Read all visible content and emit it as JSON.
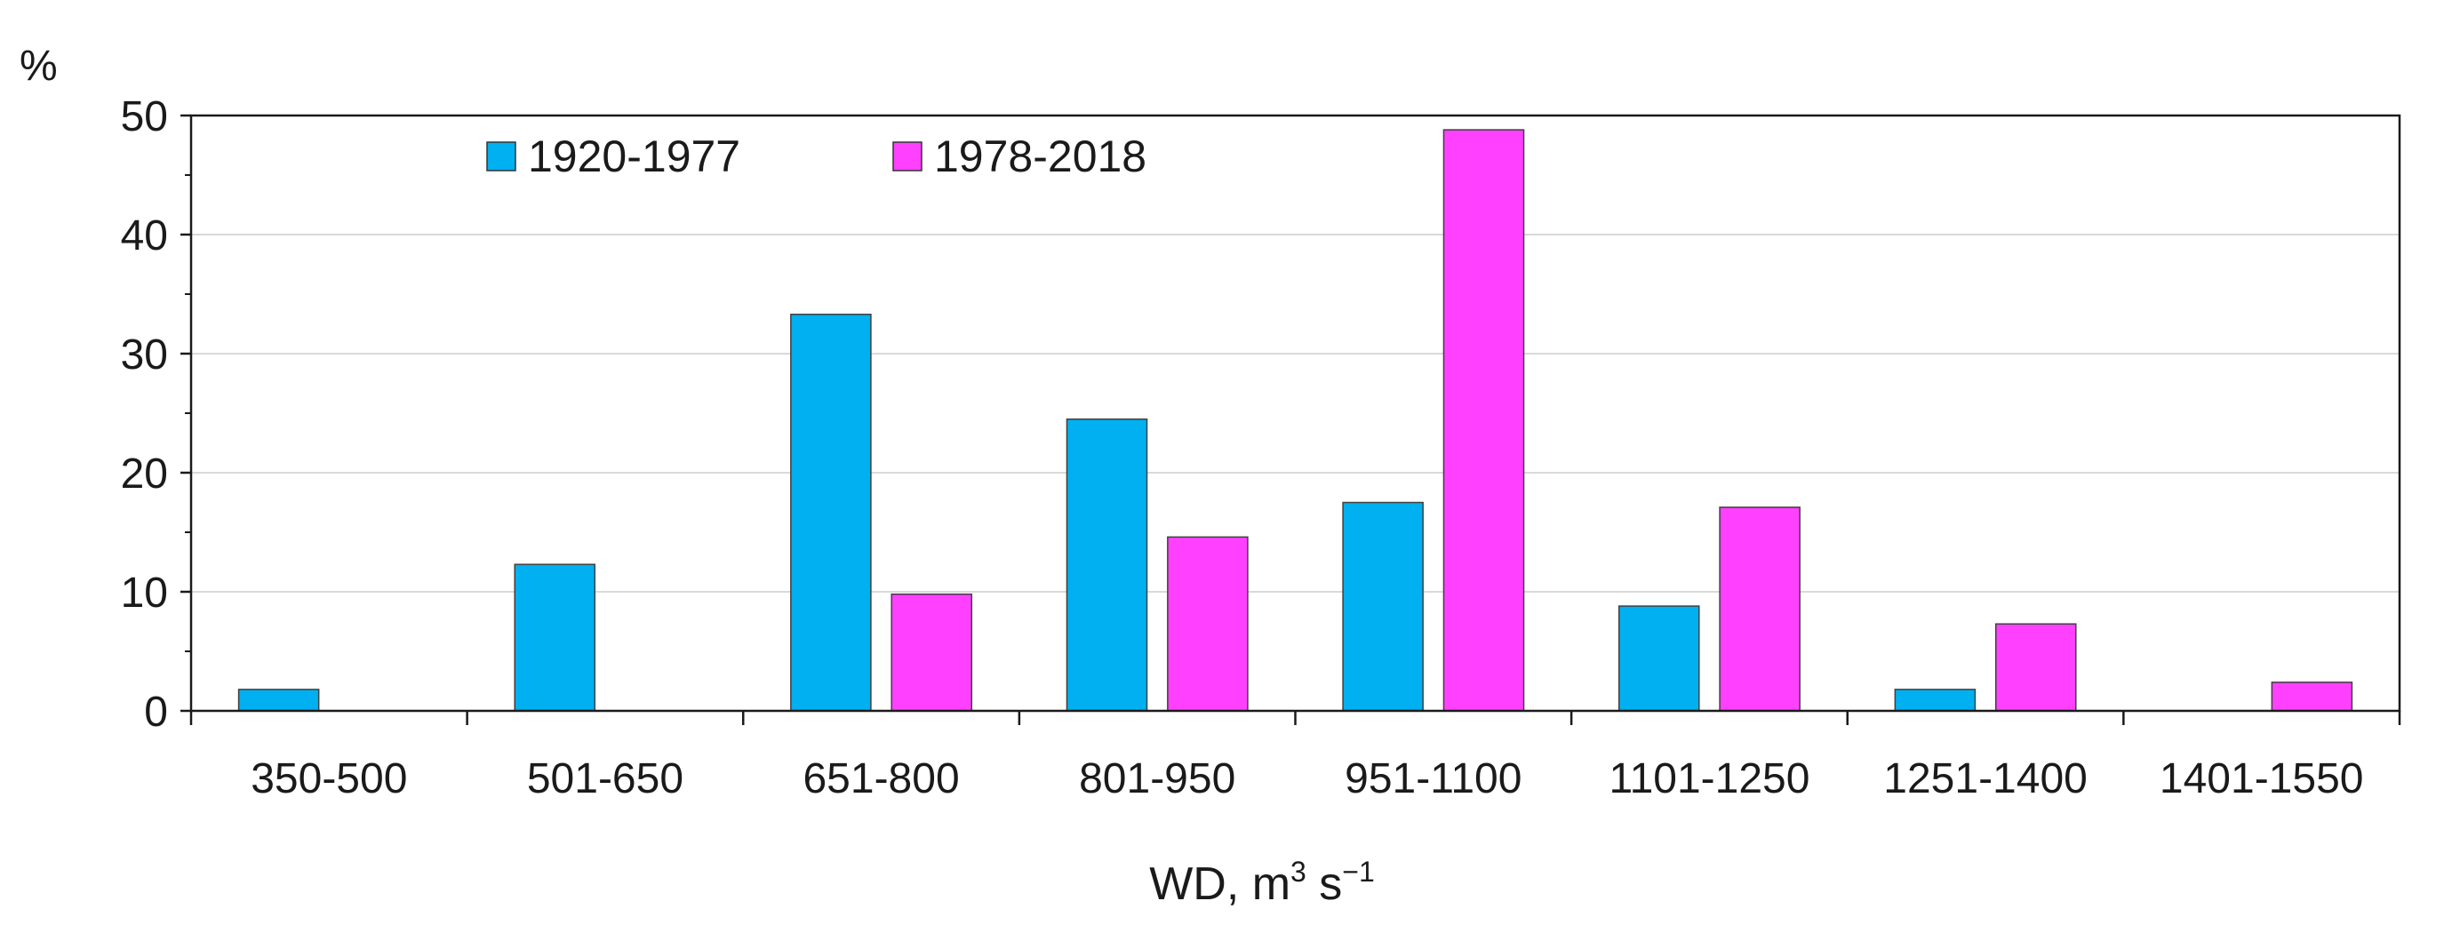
{
  "chart_data": {
    "type": "bar",
    "title": "",
    "ylabel": "%",
    "xlabel": {
      "text": "WD, m",
      "sup1": "3",
      "mid": " s",
      "sup2": "−1"
    },
    "ylim": [
      0,
      50
    ],
    "yticks": [
      0,
      10,
      20,
      30,
      40,
      50
    ],
    "categories": [
      "350-500",
      "501-650",
      "651-800",
      "801-950",
      "951-1100",
      "1101-1250",
      "1251-1400",
      "1401-1550"
    ],
    "series": [
      {
        "name": "1920-1977",
        "color": "#00b0f0",
        "values": [
          1.8,
          12.3,
          33.3,
          24.5,
          17.5,
          8.8,
          1.8,
          0
        ]
      },
      {
        "name": "1978-2018",
        "color": "#ff40ff",
        "values": [
          0,
          0,
          9.8,
          14.6,
          48.8,
          17.1,
          7.3,
          2.4
        ]
      }
    ],
    "grid": true,
    "legend_position": "top-left"
  }
}
